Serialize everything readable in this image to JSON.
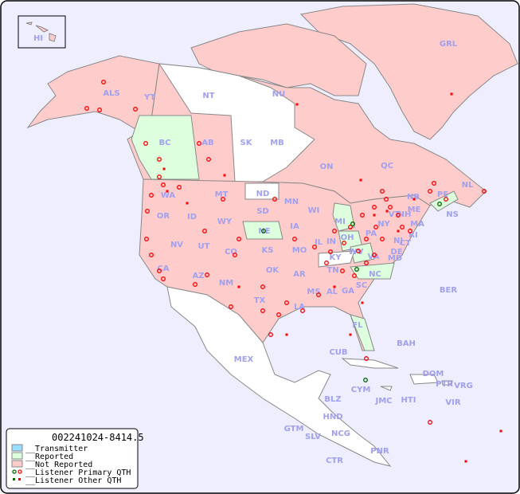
{
  "map": {
    "id_label": "002241024-8414.5",
    "colors": {
      "ocean": "#eeeeff",
      "transmitter": "#99ddff",
      "reported": "#ddffdd",
      "not_reported": "#ffcccc",
      "no_data": "#ffffff",
      "border": "#888888",
      "label": "#a0a0f0",
      "listener": "#ff0000",
      "listener_self": "#006600"
    },
    "legend": [
      {
        "label": "__Transmitter",
        "kind": "transmitter"
      },
      {
        "label": "__Reported",
        "kind": "reported"
      },
      {
        "label": "__Not Reported",
        "kind": "not_reported"
      },
      {
        "label": "__Listener Primary QTH",
        "kind": "primary"
      },
      {
        "label": "__Listener Other QTH",
        "kind": "other"
      }
    ],
    "regions": [
      "HI",
      "ALS",
      "YT",
      "NT",
      "NU",
      "GRL",
      "BC",
      "AB",
      "SK",
      "MB",
      "ON",
      "QC",
      "NL",
      "NB",
      "PE",
      "NS",
      "WA",
      "OR",
      "ID",
      "MT",
      "WY",
      "ND",
      "SD",
      "NE",
      "MN",
      "WI",
      "MI",
      "IA",
      "IL",
      "IN",
      "OH",
      "PA",
      "NY",
      "VT",
      "NH",
      "ME",
      "MA",
      "RI",
      "CT",
      "NJ",
      "DE",
      "MD",
      "WV",
      "VA",
      "KY",
      "TN",
      "NC",
      "SC",
      "GA",
      "AL",
      "MS",
      "AR",
      "LA",
      "MO",
      "KS",
      "OK",
      "TX",
      "CO",
      "UT",
      "NV",
      "CA",
      "AZ",
      "NM",
      "FL",
      "BER",
      "BAH",
      "CUB",
      "MEX",
      "CYM",
      "JMC",
      "HTI",
      "DOM",
      "PTR",
      "VRG",
      "VIR",
      "BLZ",
      "HND",
      "GTM",
      "SLV",
      "NCG",
      "CTR",
      "PNR"
    ]
  }
}
